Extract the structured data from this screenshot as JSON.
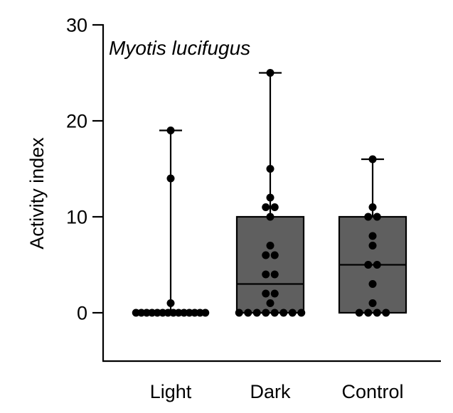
{
  "chart_data": {
    "type": "box",
    "title": "Myotis lucifugus",
    "xlabel": "",
    "ylabel": "Activity index",
    "ylim": [
      -5,
      30
    ],
    "yticks": [
      0,
      10,
      20,
      30
    ],
    "grid": false,
    "legend": "none",
    "colors": {
      "box_fill": "#5f5f5f",
      "points": "#000000",
      "lines": "#000000"
    },
    "categories": [
      "Light",
      "Dark",
      "Control"
    ],
    "series": [
      {
        "category": "Light",
        "min": 0,
        "q1": 0,
        "median": 0,
        "q3": 0,
        "max": 19,
        "points": [
          19,
          14,
          1,
          0,
          0,
          0,
          0,
          0,
          0,
          0,
          0,
          0,
          0,
          0,
          0,
          0,
          0
        ]
      },
      {
        "category": "Dark",
        "min": 0,
        "q1": 0,
        "median": 3,
        "q3": 10,
        "max": 25,
        "points": [
          25,
          15,
          12,
          11,
          11,
          10,
          7,
          6,
          6,
          4,
          4,
          2,
          2,
          1,
          0,
          0,
          0,
          0,
          0,
          0,
          0,
          0
        ]
      },
      {
        "category": "Control",
        "min": 0,
        "q1": 0,
        "median": 5,
        "q3": 10,
        "max": 16,
        "points": [
          16,
          11,
          10,
          10,
          8,
          7,
          5,
          5,
          3,
          1,
          0,
          0,
          0,
          0
        ]
      }
    ]
  }
}
